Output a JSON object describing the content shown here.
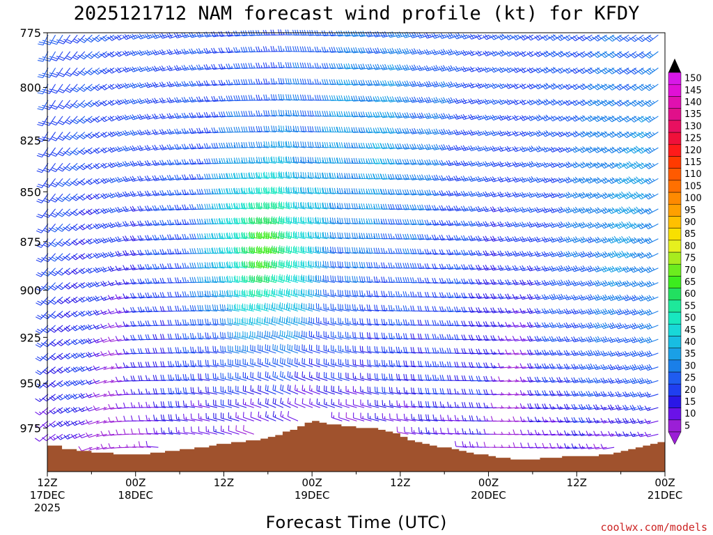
{
  "chart_data": {
    "type": "wind-barb time-height profile",
    "title": "2025121712 NAM forecast wind profile (kt) for KFDY",
    "xlabel": "Forecast Time (UTC)",
    "ylabel": "",
    "y_axis": {
      "reversed": true,
      "ticks": [
        775,
        800,
        825,
        850,
        875,
        900,
        925,
        950,
        975
      ],
      "range": [
        775,
        1000
      ]
    },
    "x_ticks": [
      {
        "hour": 0,
        "line1": "12Z",
        "line2": "17DEC",
        "line3": "2025"
      },
      {
        "hour": 12,
        "line1": "00Z",
        "line2": "18DEC",
        "line3": ""
      },
      {
        "hour": 24,
        "line1": "12Z",
        "line2": "",
        "line3": ""
      },
      {
        "hour": 36,
        "line1": "00Z",
        "line2": "19DEC",
        "line3": ""
      },
      {
        "hour": 48,
        "line1": "12Z",
        "line2": "",
        "line3": ""
      },
      {
        "hour": 60,
        "line1": "00Z",
        "line2": "20DEC",
        "line3": ""
      },
      {
        "hour": 72,
        "line1": "12Z",
        "line2": "",
        "line3": ""
      },
      {
        "hour": 84,
        "line1": "00Z",
        "line2": "21DEC",
        "line3": ""
      }
    ],
    "x_range": [
      0,
      84
    ],
    "colorbar": {
      "levels": [
        5,
        10,
        15,
        20,
        25,
        30,
        35,
        40,
        45,
        50,
        55,
        60,
        65,
        70,
        75,
        80,
        85,
        90,
        95,
        100,
        105,
        110,
        115,
        120,
        125,
        130,
        135,
        140,
        145,
        150
      ],
      "colors": [
        "#9b1fd6",
        "#6a12e8",
        "#2a17e6",
        "#1f3ff0",
        "#1f5cf0",
        "#1a7fe8",
        "#1aa0e6",
        "#18bde2",
        "#18d8d8",
        "#18e8c0",
        "#1ee89a",
        "#22e060",
        "#3cec1e",
        "#6cec1e",
        "#a8ec1e",
        "#e6f01e",
        "#f8e000",
        "#ffc000",
        "#ffa000",
        "#ff8a00",
        "#ff7000",
        "#ff5a00",
        "#ff3a00",
        "#ff1a1a",
        "#f0103a",
        "#e81060",
        "#e0108a",
        "#e010b0",
        "#e010d6",
        "#d818e8"
      ]
    },
    "surface_pressure_mb": [
      [
        0,
        985
      ],
      [
        1,
        985
      ],
      [
        2,
        987
      ],
      [
        3,
        987
      ],
      [
        4,
        988
      ],
      [
        5,
        988
      ],
      [
        6,
        989
      ],
      [
        7,
        989
      ],
      [
        8,
        989
      ],
      [
        9,
        990
      ],
      [
        10,
        990
      ],
      [
        11,
        990
      ],
      [
        12,
        990
      ],
      [
        13,
        990
      ],
      [
        14,
        989
      ],
      [
        15,
        989
      ],
      [
        16,
        988
      ],
      [
        17,
        988
      ],
      [
        18,
        987
      ],
      [
        19,
        987
      ],
      [
        20,
        986
      ],
      [
        21,
        986
      ],
      [
        22,
        985
      ],
      [
        23,
        984
      ],
      [
        24,
        984
      ],
      [
        25,
        983
      ],
      [
        26,
        983
      ],
      [
        27,
        982
      ],
      [
        28,
        982
      ],
      [
        29,
        981
      ],
      [
        30,
        980
      ],
      [
        31,
        979
      ],
      [
        32,
        977
      ],
      [
        33,
        976
      ],
      [
        34,
        974
      ],
      [
        35,
        972
      ],
      [
        36,
        971
      ],
      [
        37,
        972
      ],
      [
        38,
        973
      ],
      [
        39,
        973
      ],
      [
        40,
        974
      ],
      [
        41,
        974
      ],
      [
        42,
        975
      ],
      [
        43,
        975
      ],
      [
        44,
        975
      ],
      [
        45,
        976
      ],
      [
        46,
        977
      ],
      [
        47,
        978
      ],
      [
        48,
        980
      ],
      [
        49,
        982
      ],
      [
        50,
        983
      ],
      [
        51,
        984
      ],
      [
        52,
        985
      ],
      [
        53,
        986
      ],
      [
        54,
        986
      ],
      [
        55,
        987
      ],
      [
        56,
        988
      ],
      [
        57,
        989
      ],
      [
        58,
        990
      ],
      [
        59,
        990
      ],
      [
        60,
        991
      ],
      [
        61,
        992
      ],
      [
        62,
        992
      ],
      [
        63,
        993
      ],
      [
        64,
        993
      ],
      [
        65,
        993
      ],
      [
        66,
        993
      ],
      [
        67,
        992
      ],
      [
        68,
        992
      ],
      [
        69,
        992
      ],
      [
        70,
        991
      ],
      [
        71,
        991
      ],
      [
        72,
        991
      ],
      [
        73,
        991
      ],
      [
        74,
        991
      ],
      [
        75,
        990
      ],
      [
        76,
        990
      ],
      [
        77,
        989
      ],
      [
        78,
        988
      ],
      [
        79,
        987
      ],
      [
        80,
        986
      ],
      [
        81,
        985
      ],
      [
        82,
        984
      ],
      [
        83,
        983
      ],
      [
        84,
        983
      ]
    ],
    "wind_description": "Barbs every 1 h from 12Z 17DEC to 00Z 21DEC at 775-990 mb; speeds about 5-75 kt, strongest (60-75 kt) 850-910 mb near 18Z 18DEC, weakest near the surface"
  },
  "credit": "coolwx.com/models"
}
